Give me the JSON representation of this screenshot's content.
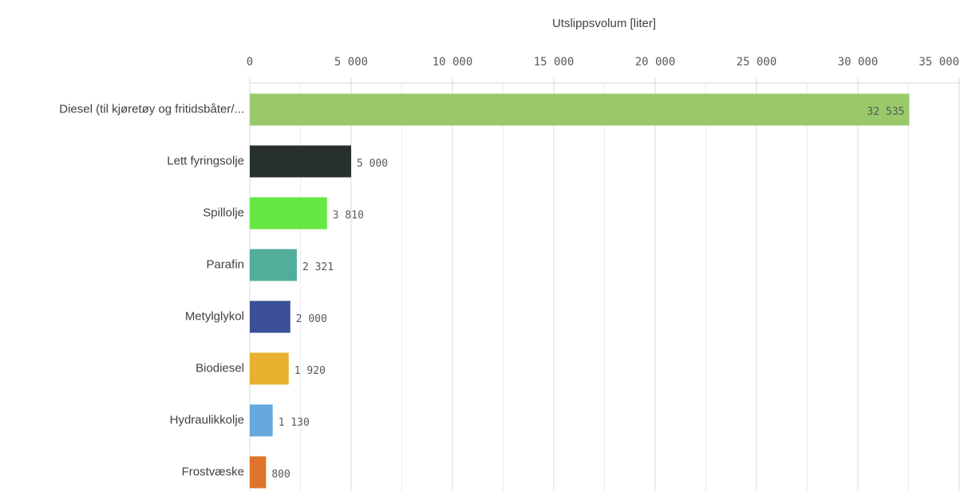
{
  "chart_data": {
    "type": "bar",
    "orientation": "horizontal",
    "x_label": "Utslippsvolum [liter]",
    "categories": [
      "Diesel (til kjøretøy og fritidsbåter/...",
      "Lett fyringsolje",
      "Spillolje",
      "Parafin",
      "Metylglykol",
      "Biodiesel",
      "Hydraulikkolje",
      "Frostvæske"
    ],
    "values": [
      32535,
      5000,
      3810,
      2321,
      2000,
      1920,
      1130,
      800
    ],
    "value_labels": [
      "32 535",
      "5 000",
      "3 810",
      "2 321",
      "2 000",
      "1 920",
      "1 130",
      "800"
    ],
    "colors": [
      "#99c96a",
      "#28302b",
      "#66e843",
      "#52ad9b",
      "#3b4f99",
      "#e8b12d",
      "#64a8dc",
      "#dd7429"
    ],
    "xlim": [
      0,
      35000
    ],
    "xticks": [
      0,
      {
        "value": 5000,
        "label": "5 000"
      },
      {
        "value": 10000,
        "label": "10 000"
      },
      {
        "value": 15000,
        "label": "15 000"
      },
      {
        "value": 20000,
        "label": "20 000"
      },
      {
        "value": 25000,
        "label": "25 000"
      },
      {
        "value": 30000,
        "label": "30 000"
      },
      {
        "value": 35000,
        "label": "35 000"
      }
    ],
    "xminor_ticks": [
      2500,
      7500,
      12500,
      17500,
      22500,
      27500,
      32500
    ],
    "grid": true
  }
}
